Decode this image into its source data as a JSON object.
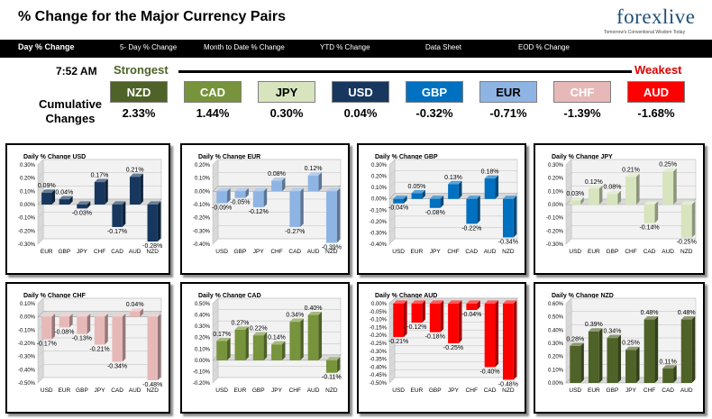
{
  "header": {
    "title": "% Change for the Major Currency Pairs",
    "logo_text": "forexlive",
    "logo_tagline": "Tomorrow's Conventional Wisdom Today"
  },
  "nav": {
    "items": [
      {
        "label": "Day % Change",
        "active": true
      },
      {
        "label": "5- Day % Change",
        "active": false
      },
      {
        "label": "Month to Date % Change",
        "active": false
      },
      {
        "label": "YTD % Change",
        "active": false
      },
      {
        "label": "Data Sheet",
        "active": false
      },
      {
        "label": "EOD % Change",
        "active": false
      }
    ]
  },
  "summary": {
    "time": "7:52 AM",
    "strongest_label": "Strongest",
    "weakest_label": "Weakest",
    "cumulative_label": "Cumulative Changes",
    "currencies": [
      {
        "code": "NZD",
        "change": "2.33%",
        "bg": "#4f6228",
        "fg": "#ffffff"
      },
      {
        "code": "CAD",
        "change": "1.44%",
        "bg": "#77933c",
        "fg": "#ffffff"
      },
      {
        "code": "JPY",
        "change": "0.30%",
        "bg": "#d7e4bd",
        "fg": "#000000"
      },
      {
        "code": "USD",
        "change": "0.04%",
        "bg": "#17375e",
        "fg": "#ffffff"
      },
      {
        "code": "GBP",
        "change": "-0.32%",
        "bg": "#0070c0",
        "fg": "#ffffff"
      },
      {
        "code": "EUR",
        "change": "-0.71%",
        "bg": "#8eb4e3",
        "fg": "#000000"
      },
      {
        "code": "CHF",
        "change": "-1.39%",
        "bg": "#e6b9b8",
        "fg": "#ffffff"
      },
      {
        "code": "AUD",
        "change": "-1.68%",
        "bg": "#ff0000",
        "fg": "#ffffff"
      }
    ]
  },
  "chart_data": [
    {
      "type": "bar",
      "title": "Daily % Change USD",
      "color": "#17375e",
      "categories": [
        "EUR",
        "GBP",
        "JPY",
        "CHF",
        "CAD",
        "AUD",
        "NZD"
      ],
      "values": [
        0.09,
        0.04,
        -0.03,
        0.17,
        -0.17,
        0.21,
        -0.28
      ],
      "labels": [
        "0.09%",
        "0.04%",
        "-0.03%",
        "0.17%",
        "-0.17%",
        "0.21%",
        "-0.28%"
      ],
      "ylim": [
        -0.3,
        0.3
      ],
      "yticks": [
        "-0.30%",
        "-0.20%",
        "-0.10%",
        "0.00%",
        "0.10%",
        "0.20%",
        "0.30%"
      ]
    },
    {
      "type": "bar",
      "title": "Daily % Change EUR",
      "color": "#8eb4e3",
      "categories": [
        "USD",
        "GBP",
        "JPY",
        "CHF",
        "CAD",
        "AUD",
        "NZD"
      ],
      "values": [
        -0.09,
        -0.05,
        -0.12,
        0.08,
        -0.27,
        0.12,
        -0.39
      ],
      "labels": [
        "-0.09%",
        "-0.05%",
        "-0.12%",
        "0.08%",
        "-0.27%",
        "0.12%",
        "-0.39%"
      ],
      "ylim": [
        -0.4,
        0.2
      ],
      "yticks": [
        "-0.40%",
        "-0.30%",
        "-0.20%",
        "-0.10%",
        "0.00%",
        "0.10%",
        "0.20%"
      ]
    },
    {
      "type": "bar",
      "title": "Daily % Change GBP",
      "color": "#0070c0",
      "categories": [
        "USD",
        "EUR",
        "JPY",
        "CHF",
        "CAD",
        "AUD",
        "NZD"
      ],
      "values": [
        -0.04,
        0.05,
        -0.08,
        0.13,
        -0.22,
        0.18,
        -0.34
      ],
      "labels": [
        "-0.04%",
        "0.05%",
        "-0.08%",
        "0.13%",
        "-0.22%",
        "0.18%",
        "-0.34%"
      ],
      "ylim": [
        -0.4,
        0.3
      ],
      "yticks": [
        "-0.40%",
        "-0.30%",
        "-0.20%",
        "-0.10%",
        "0.00%",
        "0.10%",
        "0.20%",
        "0.30%"
      ]
    },
    {
      "type": "bar",
      "title": "Daily % Change JPY",
      "color": "#d7e4bd",
      "categories": [
        "USD",
        "EUR",
        "GBP",
        "CHF",
        "CAD",
        "AUD",
        "NZD"
      ],
      "values": [
        0.03,
        0.12,
        0.08,
        0.21,
        -0.14,
        0.25,
        -0.25
      ],
      "labels": [
        "0.03%",
        "0.12%",
        "0.08%",
        "0.21%",
        "-0.14%",
        "0.25%",
        "-0.25%"
      ],
      "ylim": [
        -0.3,
        0.3
      ],
      "yticks": [
        "-0.30%",
        "-0.20%",
        "-0.10%",
        "0.00%",
        "0.10%",
        "0.20%",
        "0.30%"
      ]
    },
    {
      "type": "bar",
      "title": "Daily % Change CHF",
      "color": "#e6b9b8",
      "categories": [
        "USD",
        "EUR",
        "GBP",
        "JPY",
        "CAD",
        "AUD",
        "NZD"
      ],
      "values": [
        -0.17,
        -0.08,
        -0.13,
        -0.21,
        -0.34,
        0.04,
        -0.48
      ],
      "labels": [
        "-0.17%",
        "-0.08%",
        "-0.13%",
        "-0.21%",
        "-0.34%",
        "0.04%",
        "-0.48%"
      ],
      "ylim": [
        -0.5,
        0.1
      ],
      "yticks": [
        "-0.50%",
        "-0.40%",
        "-0.30%",
        "-0.20%",
        "-0.10%",
        "0.00%",
        "0.10%"
      ]
    },
    {
      "type": "bar",
      "title": "Daily % Change CAD",
      "color": "#77933c",
      "categories": [
        "USD",
        "EUR",
        "GBP",
        "JPY",
        "CHF",
        "AUD",
        "NZD"
      ],
      "values": [
        0.17,
        0.27,
        0.22,
        0.14,
        0.34,
        0.4,
        -0.11
      ],
      "labels": [
        "0.17%",
        "0.27%",
        "0.22%",
        "0.14%",
        "0.34%",
        "0.40%",
        "-0.11%"
      ],
      "ylim": [
        -0.2,
        0.5
      ],
      "yticks": [
        "-0.20%",
        "-0.10%",
        "0.00%",
        "0.10%",
        "0.20%",
        "0.30%",
        "0.40%",
        "0.50%"
      ]
    },
    {
      "type": "bar",
      "title": "Daily % Change AUD",
      "color": "#ff0000",
      "categories": [
        "USD",
        "EUR",
        "GBP",
        "JPY",
        "CHF",
        "CAD",
        "NZD"
      ],
      "values": [
        -0.21,
        -0.12,
        -0.18,
        -0.25,
        -0.04,
        -0.4,
        -0.48
      ],
      "labels": [
        "-0.21%",
        "-0.12%",
        "-0.18%",
        "-0.25%",
        "-0.04%",
        "-0.40%",
        "-0.48%"
      ],
      "ylim": [
        -0.5,
        0.0
      ],
      "yticks": [
        "-0.50%",
        "-0.45%",
        "-0.40%",
        "-0.35%",
        "-0.30%",
        "-0.25%",
        "-0.20%",
        "-0.15%",
        "-0.10%",
        "-0.05%",
        "0.00%"
      ]
    },
    {
      "type": "bar",
      "title": "Daily % Change NZD",
      "color": "#4f6228",
      "categories": [
        "USD",
        "EUR",
        "GBP",
        "JPY",
        "CHF",
        "CAD",
        "AUD"
      ],
      "values": [
        0.28,
        0.39,
        0.34,
        0.25,
        0.48,
        0.11,
        0.48
      ],
      "labels": [
        "0.28%",
        "0.39%",
        "0.34%",
        "0.25%",
        "0.48%",
        "0.11%",
        "0.48%"
      ],
      "ylim": [
        0.0,
        0.6
      ],
      "yticks": [
        "0.00%",
        "0.10%",
        "0.20%",
        "0.30%",
        "0.40%",
        "0.50%",
        "0.60%"
      ]
    }
  ]
}
